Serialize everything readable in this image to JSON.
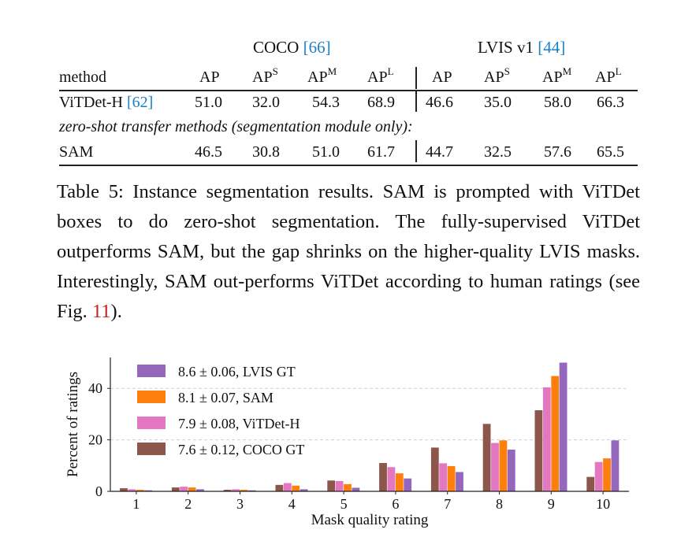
{
  "table": {
    "group_headers": [
      {
        "name": "COCO",
        "cite": "[66]"
      },
      {
        "name": "LVIS v1",
        "cite": "[44]"
      }
    ],
    "method_header": "method",
    "col_headers": [
      {
        "base": "AP",
        "sup": ""
      },
      {
        "base": "AP",
        "sup": "S"
      },
      {
        "base": "AP",
        "sup": "M"
      },
      {
        "base": "AP",
        "sup": "L"
      },
      {
        "base": "AP",
        "sup": ""
      },
      {
        "base": "AP",
        "sup": "S"
      },
      {
        "base": "AP",
        "sup": "M"
      },
      {
        "base": "AP",
        "sup": "L"
      }
    ],
    "rows": [
      {
        "method": "ViTDet-H",
        "cite": "[62]",
        "values": [
          "51.0",
          "32.0",
          "54.3",
          "68.9",
          "46.6",
          "35.0",
          "58.0",
          "66.3"
        ]
      },
      {
        "method": "SAM",
        "cite": "",
        "values": [
          "46.5",
          "30.8",
          "51.0",
          "61.7",
          "44.7",
          "32.5",
          "57.6",
          "65.5"
        ]
      }
    ],
    "section_note": "zero-shot transfer methods (segmentation module only):"
  },
  "caption": {
    "part1": "Table 5: Instance segmentation results. SAM is prompted with ViTDet boxes to do zero-shot segmentation. The fully-supervised ViTDet outperforms SAM, but the gap shrinks on the higher-quality LVIS masks. Interestingly, SAM out-performs ViTDet according to human ratings (see Fig. ",
    "ref": "11",
    "part2": ")."
  },
  "chart_data": {
    "type": "bar",
    "xlabel": "Mask quality rating",
    "ylabel": "Percent of ratings",
    "categories": [
      "1",
      "2",
      "3",
      "4",
      "5",
      "6",
      "7",
      "8",
      "9",
      "10"
    ],
    "yticks": [
      0,
      20,
      40
    ],
    "ylim": [
      0,
      52
    ],
    "grid": true,
    "legend_position": "top-left",
    "series": [
      {
        "name": "7.6 ± 0.12, COCO GT",
        "color": "#8c564b",
        "values": [
          1.2,
          1.5,
          0.6,
          2.5,
          4.2,
          11.0,
          17.0,
          26.2,
          31.5,
          5.6
        ]
      },
      {
        "name": "7.9 ± 0.08, ViTDet-H",
        "color": "#e377c2",
        "values": [
          0.8,
          1.8,
          0.8,
          3.2,
          4.0,
          9.4,
          10.9,
          18.8,
          40.4,
          11.4
        ]
      },
      {
        "name": "8.1 ± 0.07, SAM",
        "color": "#ff7f0e",
        "values": [
          0.6,
          1.5,
          0.6,
          2.2,
          2.8,
          7.0,
          9.8,
          19.8,
          44.8,
          12.8
        ]
      },
      {
        "name": "8.6 ± 0.06, LVIS GT",
        "color": "#9467bd",
        "values": [
          0.4,
          0.8,
          0.4,
          0.8,
          1.4,
          5.0,
          7.5,
          16.2,
          50.0,
          19.8
        ]
      }
    ]
  }
}
